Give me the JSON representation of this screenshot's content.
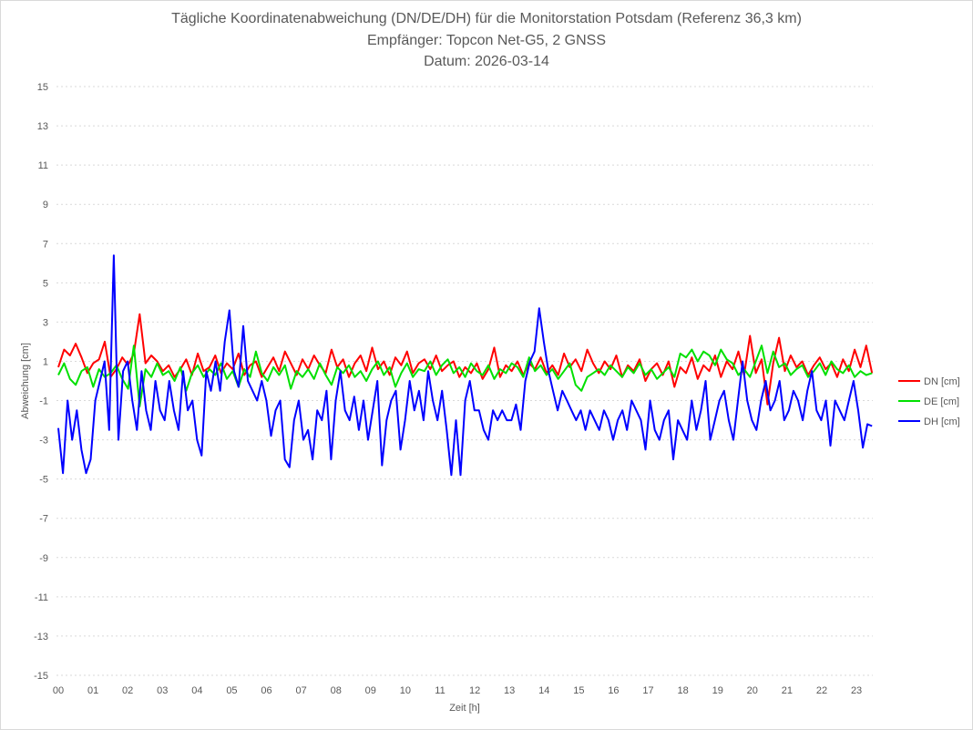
{
  "chart_data": {
    "type": "line",
    "title": "Tägliche Koordinatenabweichung (DN/DE/DH) für die Monitorstation Potsdam (Referenz 36,3 km)",
    "subtitle": "Empfänger: Topcon Net-G5, 2 GNSS",
    "date_line": "Datum: 2026-03-14",
    "xlabel": "Zeit [h]",
    "ylabel": "Abweichung [cm]",
    "xlim": [
      0,
      23.5
    ],
    "ylim": [
      -15,
      15
    ],
    "x_end_h": 23.45,
    "grid": true,
    "legend_position": "right",
    "x_tick_labels": [
      "00",
      "01",
      "02",
      "03",
      "04",
      "05",
      "06",
      "07",
      "08",
      "09",
      "10",
      "11",
      "12",
      "13",
      "14",
      "15",
      "16",
      "17",
      "18",
      "19",
      "20",
      "21",
      "22",
      "23"
    ],
    "y_tick_labels": [
      "15",
      "13",
      "11",
      "9",
      "7",
      "5",
      "3",
      "1",
      "-1",
      "-3",
      "-5",
      "-7",
      "-9",
      "-11",
      "-13",
      "-15"
    ],
    "series": [
      {
        "name": "DN [cm]",
        "color": "#ff0000",
        "values": [
          0.7,
          1.6,
          1.3,
          1.9,
          1.2,
          0.4,
          0.9,
          1.1,
          2.0,
          0.2,
          0.6,
          1.2,
          0.8,
          1.4,
          3.4,
          0.9,
          1.3,
          1.0,
          0.5,
          0.8,
          0.2,
          0.6,
          1.1,
          0.3,
          1.4,
          0.5,
          0.7,
          1.3,
          0.4,
          0.9,
          0.6,
          1.4,
          0.3,
          0.8,
          1.0,
          0.2,
          0.7,
          1.2,
          0.5,
          1.5,
          0.9,
          0.3,
          1.1,
          0.6,
          1.3,
          0.8,
          0.4,
          1.6,
          0.7,
          1.1,
          0.2,
          0.9,
          1.3,
          0.5,
          1.7,
          0.6,
          1.0,
          0.3,
          1.2,
          0.8,
          1.5,
          0.4,
          0.9,
          1.1,
          0.6,
          1.3,
          0.5,
          0.8,
          1.0,
          0.2,
          0.7,
          0.4,
          0.9,
          0.1,
          0.6,
          1.7,
          0.2,
          0.8,
          0.5,
          1.0,
          0.3,
          0.9,
          0.6,
          1.2,
          0.4,
          0.8,
          0.3,
          1.4,
          0.7,
          1.1,
          0.5,
          1.6,
          0.9,
          0.4,
          1.0,
          0.6,
          1.3,
          0.2,
          0.8,
          0.5,
          1.1,
          0.0,
          0.6,
          0.9,
          0.3,
          1.0,
          -0.3,
          0.7,
          0.4,
          1.2,
          0.1,
          0.8,
          0.5,
          1.3,
          0.2,
          1.0,
          0.6,
          1.5,
          0.3,
          2.3,
          0.4,
          1.1,
          -1.2,
          0.9,
          2.2,
          0.5,
          1.3,
          0.7,
          1.0,
          0.3,
          0.8,
          1.2,
          0.6,
          0.9,
          0.2,
          1.1,
          0.5,
          1.6,
          0.7,
          1.8,
          0.4
        ]
      },
      {
        "name": "DE [cm]",
        "color": "#00e000",
        "values": [
          0.3,
          0.9,
          0.1,
          -0.2,
          0.5,
          0.7,
          -0.3,
          0.6,
          0.2,
          0.4,
          0.8,
          0.1,
          -0.4,
          1.8,
          -1.3,
          0.6,
          0.2,
          0.9,
          0.3,
          0.5,
          0.0,
          0.7,
          -0.5,
          0.4,
          0.8,
          0.2,
          0.6,
          0.3,
          0.9,
          0.1,
          0.5,
          -0.3,
          0.6,
          0.2,
          1.5,
          0.4,
          0.0,
          0.7,
          0.3,
          0.8,
          -0.4,
          0.5,
          0.2,
          0.6,
          0.1,
          0.9,
          0.3,
          -0.2,
          0.7,
          0.4,
          0.8,
          0.2,
          0.5,
          0.0,
          0.6,
          1.0,
          0.3,
          0.7,
          -0.3,
          0.4,
          0.9,
          0.2,
          0.6,
          0.5,
          1.0,
          0.3,
          0.8,
          1.1,
          0.4,
          0.7,
          0.2,
          0.9,
          0.5,
          0.3,
          0.8,
          0.1,
          0.6,
          0.4,
          0.9,
          0.7,
          0.2,
          1.2,
          0.5,
          0.8,
          0.3,
          0.6,
          0.1,
          0.5,
          0.9,
          -0.2,
          -0.5,
          0.2,
          0.4,
          0.6,
          0.3,
          0.8,
          0.5,
          0.2,
          0.7,
          0.4,
          0.9,
          0.3,
          0.6,
          0.1,
          0.4,
          0.7,
          0.2,
          1.4,
          1.2,
          1.6,
          1.0,
          1.5,
          1.3,
          0.8,
          1.6,
          1.1,
          0.9,
          0.3,
          0.6,
          0.2,
          1.0,
          1.8,
          0.4,
          1.5,
          0.7,
          0.9,
          0.3,
          0.6,
          0.8,
          0.2,
          0.5,
          0.9,
          0.3,
          1.0,
          0.6,
          0.4,
          0.8,
          0.2,
          0.5,
          0.3,
          0.4
        ]
      },
      {
        "name": "DH [cm]",
        "color": "#0000ff",
        "values": [
          -2.4,
          -4.7,
          -1.0,
          -3.0,
          -1.5,
          -3.5,
          -4.7,
          -4.0,
          -1.0,
          0.0,
          1.0,
          -2.5,
          6.4,
          -3.0,
          0.5,
          1.0,
          -1.0,
          -2.5,
          0.5,
          -1.5,
          -2.5,
          0.0,
          -1.5,
          -2.0,
          0.0,
          -1.5,
          -2.5,
          0.5,
          -1.5,
          -1.0,
          -3.0,
          -3.8,
          0.5,
          -0.5,
          1.0,
          -0.5,
          2.0,
          3.6,
          0.5,
          -0.3,
          2.8,
          0.0,
          -0.5,
          -1.0,
          0.0,
          -1.0,
          -2.8,
          -1.5,
          -1.0,
          -4.0,
          -4.4,
          -2.0,
          -1.0,
          -3.0,
          -2.5,
          -4.0,
          -1.5,
          -2.0,
          -0.5,
          -4.0,
          -1.0,
          0.5,
          -1.5,
          -2.0,
          -0.8,
          -2.5,
          -1.0,
          -3.0,
          -1.5,
          0.0,
          -4.3,
          -2.0,
          -1.0,
          -0.5,
          -3.5,
          -2.0,
          0.0,
          -1.5,
          -0.5,
          -2.0,
          0.5,
          -1.0,
          -2.0,
          -0.5,
          -2.5,
          -4.8,
          -2.0,
          -4.8,
          -1.0,
          0.0,
          -1.5,
          -1.5,
          -2.5,
          -3.0,
          -1.5,
          -2.0,
          -1.5,
          -2.0,
          -2.0,
          -1.2,
          -2.5,
          0.0,
          1.0,
          1.5,
          3.7,
          2.0,
          0.5,
          -0.5,
          -1.5,
          -0.5,
          -1.0,
          -1.5,
          -2.0,
          -1.5,
          -2.5,
          -1.5,
          -2.0,
          -2.5,
          -1.5,
          -2.0,
          -3.0,
          -2.0,
          -1.5,
          -2.5,
          -1.0,
          -1.5,
          -2.0,
          -3.5,
          -1.0,
          -2.5,
          -3.0,
          -2.0,
          -1.5,
          -4.0,
          -2.0,
          -2.5,
          -3.0,
          -1.0,
          -2.5,
          -1.5,
          0.0,
          -3.0,
          -2.0,
          -1.0,
          -0.5,
          -2.0,
          -3.0,
          -1.0,
          1.0,
          -1.0,
          -2.0,
          -2.5,
          -1.0,
          0.0,
          -1.5,
          -1.0,
          0.0,
          -2.0,
          -1.5,
          -0.5,
          -1.0,
          -2.0,
          -0.5,
          0.5,
          -1.5,
          -2.0,
          -1.0,
          -3.3,
          -1.0,
          -1.5,
          -2.0,
          -1.0,
          0.0,
          -1.5,
          -3.4,
          -2.2,
          -2.3
        ]
      }
    ]
  }
}
